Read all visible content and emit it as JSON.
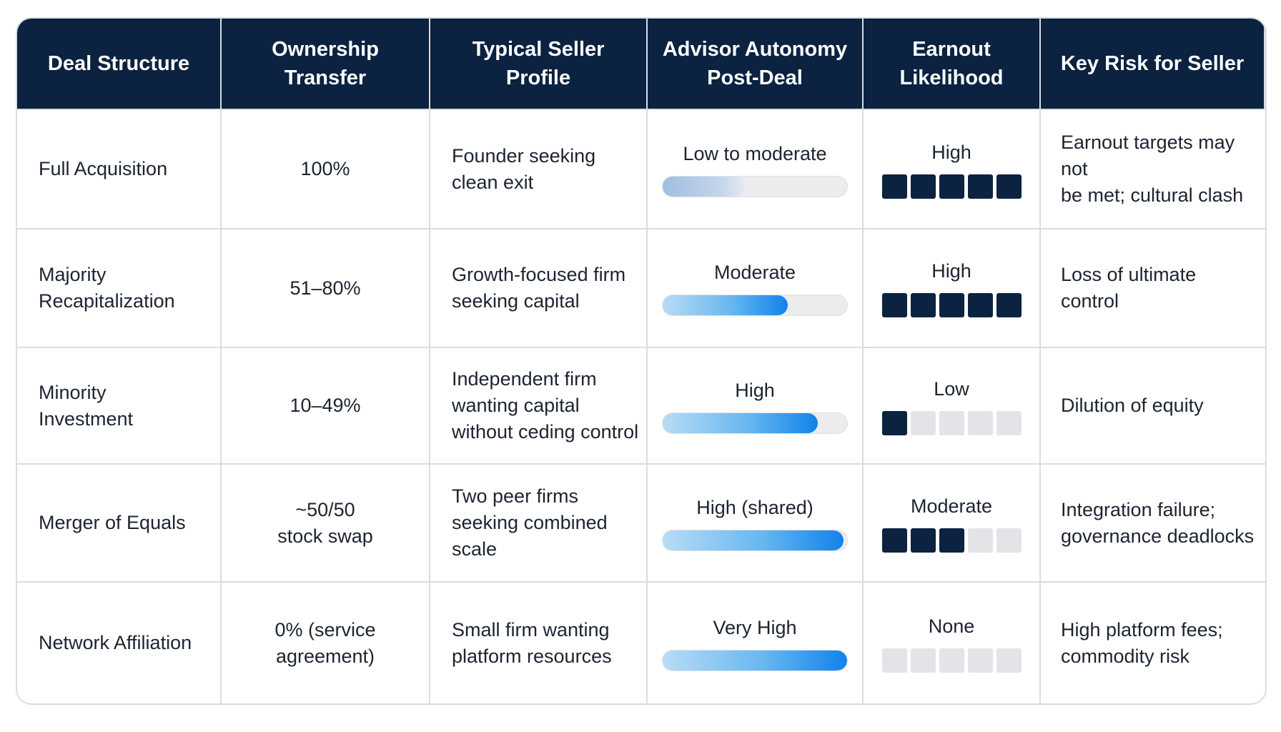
{
  "headers": [
    "Deal Structure",
    "Ownership Transfer",
    "Typical Seller Profile",
    "Advisor Autonomy\nPost-Deal",
    "Earnout\nLikelihood",
    "Key Risk for Seller"
  ],
  "rows": [
    {
      "structure": "Full Acquisition",
      "ownership": "100%",
      "profile": "Founder seeking\nclean exit",
      "autonomy_label": "Low to moderate",
      "autonomy_level": 0.45,
      "earnout_label": "High",
      "earnout_score": 5,
      "risk": "Earnout targets may not\nbe met; cultural clash"
    },
    {
      "structure": "Majority\nRecapitalization",
      "ownership": "51–80%",
      "profile": "Growth-focused firm\nseeking capital",
      "autonomy_label": "Moderate",
      "autonomy_level": 0.68,
      "earnout_label": "High",
      "earnout_score": 5,
      "risk": "Loss of ultimate control"
    },
    {
      "structure": "Minority\nInvestment",
      "ownership": "10–49%",
      "profile": "Independent firm\nwanting capital\nwithout ceding control",
      "autonomy_label": "High",
      "autonomy_level": 0.84,
      "earnout_label": "Low",
      "earnout_score": 1,
      "risk": "Dilution of equity"
    },
    {
      "structure": "Merger of Equals",
      "ownership": "~50/50\nstock swap",
      "profile": "Two peer firms\nseeking combined scale",
      "autonomy_label": "High (shared)",
      "autonomy_level": 0.98,
      "earnout_label": "Moderate",
      "earnout_score": 3,
      "risk": "Integration failure;\ngovernance deadlocks"
    },
    {
      "structure": "Network Affiliation",
      "ownership": "0% (service\nagreement)",
      "profile": "Small firm wanting\nplatform resources",
      "autonomy_label": "Very High",
      "autonomy_level": 1.0,
      "earnout_label": "None",
      "earnout_score": 0,
      "risk": "High platform fees;\ncommodity risk"
    }
  ],
  "colors": {
    "header_bg": "#0b2240",
    "square_on": "#0b2240",
    "square_off": "#e3e4e7",
    "bar_accent": "#1282ea"
  }
}
